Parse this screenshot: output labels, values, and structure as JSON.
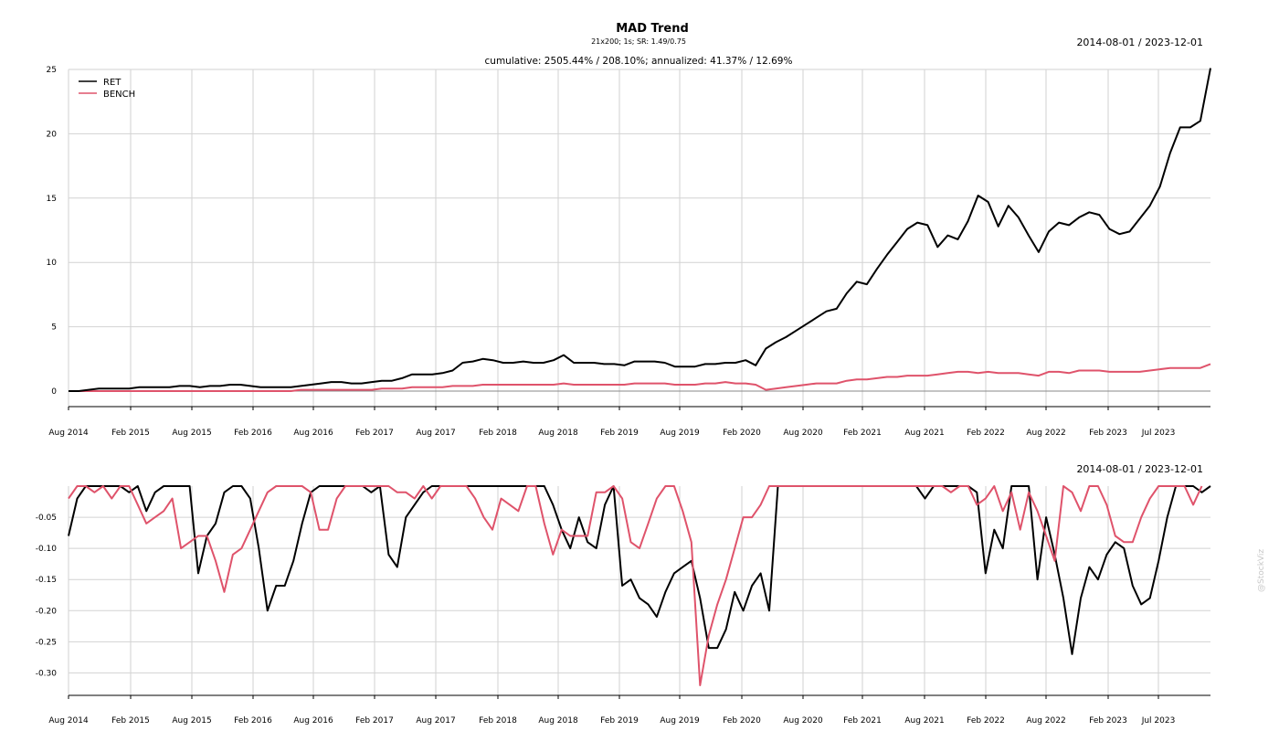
{
  "title": "MAD Trend",
  "subtitle": "21x200; 1s; SR: 1.49/0.75",
  "stats": "cumulative: 2505.44% / 208.10%; annualized: 41.37% / 12.69%",
  "date_range_top": "2014-08-01 / 2023-12-01",
  "date_range_bottom": "2014-08-01 / 2023-12-01",
  "watermark": "@StockViz",
  "colors": {
    "ret": "#000000",
    "bench": "#df536b",
    "grid": "#d2d2d2"
  },
  "x_tick_labels": [
    "Aug 2014",
    "Feb 2015",
    "Aug 2015",
    "Feb 2016",
    "Aug 2016",
    "Feb 2017",
    "Aug 2017",
    "Feb 2018",
    "Aug 2018",
    "Feb 2019",
    "Aug 2019",
    "Feb 2020",
    "Aug 2020",
    "Feb 2021",
    "Aug 2021",
    "Feb 2022",
    "Aug 2022",
    "Feb 2023",
    "Jul 2023"
  ],
  "chart_data": [
    {
      "type": "line",
      "title": "MAD Trend",
      "x_start": "2014-08",
      "x_end": "2023-12",
      "x_frequency": "monthly",
      "ylim": [
        0,
        25
      ],
      "y_ticks": [
        "0",
        "5",
        "10",
        "15",
        "20",
        "25"
      ],
      "legend": "top-left",
      "grid": true,
      "series": [
        {
          "name": "RET",
          "color": "#000000",
          "values": [
            0,
            0,
            0.1,
            0.2,
            0.2,
            0.2,
            0.2,
            0.3,
            0.3,
            0.3,
            0.3,
            0.4,
            0.4,
            0.3,
            0.4,
            0.4,
            0.5,
            0.5,
            0.4,
            0.3,
            0.3,
            0.3,
            0.3,
            0.4,
            0.5,
            0.6,
            0.7,
            0.7,
            0.6,
            0.6,
            0.7,
            0.8,
            0.8,
            1.0,
            1.3,
            1.3,
            1.3,
            1.4,
            1.6,
            2.2,
            2.3,
            2.5,
            2.4,
            2.2,
            2.2,
            2.3,
            2.2,
            2.2,
            2.4,
            2.8,
            2.2,
            2.2,
            2.2,
            2.1,
            2.1,
            2.0,
            2.3,
            2.3,
            2.3,
            2.2,
            1.9,
            1.9,
            1.9,
            2.1,
            2.1,
            2.2,
            2.2,
            2.4,
            2.0,
            3.3,
            3.8,
            4.2,
            4.7,
            5.2,
            5.7,
            6.2,
            6.4,
            7.6,
            8.5,
            8.3,
            9.5,
            10.6,
            11.6,
            12.6,
            13.1,
            12.9,
            11.2,
            12.1,
            11.8,
            13.2,
            15.2,
            14.7,
            12.8,
            14.4,
            13.5,
            12.1,
            10.8,
            12.4,
            13.1,
            12.9,
            13.5,
            13.9,
            13.7,
            12.6,
            12.2,
            12.4,
            13.4,
            14.4,
            15.9,
            18.5,
            20.5,
            20.5,
            21.0,
            25.1
          ]
        },
        {
          "name": "BENCH",
          "color": "#df536b",
          "values": [
            0,
            0,
            0,
            0,
            0,
            0,
            0,
            0,
            0,
            0,
            0,
            0,
            0,
            0,
            0,
            0,
            0,
            0,
            0,
            0,
            0,
            0,
            0,
            0.1,
            0.1,
            0.1,
            0.1,
            0.1,
            0.1,
            0.1,
            0.1,
            0.2,
            0.2,
            0.2,
            0.3,
            0.3,
            0.3,
            0.3,
            0.4,
            0.4,
            0.4,
            0.5,
            0.5,
            0.5,
            0.5,
            0.5,
            0.5,
            0.5,
            0.5,
            0.6,
            0.5,
            0.5,
            0.5,
            0.5,
            0.5,
            0.5,
            0.6,
            0.6,
            0.6,
            0.6,
            0.5,
            0.5,
            0.5,
            0.6,
            0.6,
            0.7,
            0.6,
            0.6,
            0.5,
            0.1,
            0.2,
            0.3,
            0.4,
            0.5,
            0.6,
            0.6,
            0.6,
            0.8,
            0.9,
            0.9,
            1.0,
            1.1,
            1.1,
            1.2,
            1.2,
            1.2,
            1.3,
            1.4,
            1.5,
            1.5,
            1.4,
            1.5,
            1.4,
            1.4,
            1.4,
            1.3,
            1.2,
            1.5,
            1.5,
            1.4,
            1.6,
            1.6,
            1.6,
            1.5,
            1.5,
            1.5,
            1.5,
            1.6,
            1.7,
            1.8,
            1.8,
            1.8,
            1.8,
            2.1
          ]
        }
      ]
    },
    {
      "type": "line",
      "title": "",
      "x_start": "2014-08",
      "x_end": "2023-12",
      "x_frequency": "monthly",
      "ylim": [
        -0.32,
        0
      ],
      "y_ticks": [
        "-0.05",
        "-0.10",
        "-0.15",
        "-0.20",
        "-0.25",
        "-0.30"
      ],
      "grid": true,
      "series": [
        {
          "name": "RET",
          "color": "#000000",
          "values": [
            -0.08,
            -0.02,
            0,
            0,
            0,
            0,
            0,
            -0.01,
            0,
            -0.04,
            -0.01,
            0,
            0,
            0,
            0,
            -0.14,
            -0.08,
            -0.06,
            -0.01,
            0,
            0,
            -0.02,
            -0.1,
            -0.2,
            -0.16,
            -0.16,
            -0.12,
            -0.06,
            -0.01,
            0,
            0,
            0,
            0,
            0,
            0,
            -0.01,
            0,
            -0.11,
            -0.13,
            -0.05,
            -0.03,
            -0.01,
            0,
            0,
            0,
            0,
            0,
            0,
            0,
            0,
            0,
            0,
            0,
            0,
            0,
            0,
            -0.03,
            -0.07,
            -0.1,
            -0.05,
            -0.09,
            -0.1,
            -0.03,
            0,
            -0.16,
            -0.15,
            -0.18,
            -0.19,
            -0.21,
            -0.17,
            -0.14,
            -0.13,
            -0.12,
            -0.18,
            -0.26,
            -0.26,
            -0.23,
            -0.17,
            -0.2,
            -0.16,
            -0.14,
            -0.2,
            0,
            0,
            0,
            0,
            0,
            0,
            0,
            0,
            0,
            0,
            0,
            0,
            0,
            0,
            0,
            0,
            0,
            -0.02,
            0,
            0,
            0,
            0,
            0,
            -0.01,
            -0.14,
            -0.07,
            -0.1,
            0,
            0,
            0,
            -0.15,
            -0.05,
            -0.11,
            -0.18,
            -0.27,
            -0.18,
            -0.13,
            -0.15,
            -0.11,
            -0.09,
            -0.1,
            -0.16,
            -0.19,
            -0.18,
            -0.12,
            -0.05,
            0,
            0,
            0,
            -0.01,
            0
          ]
        },
        {
          "name": "BENCH",
          "color": "#df536b",
          "values": [
            -0.02,
            0,
            0,
            -0.01,
            0,
            -0.02,
            0,
            0,
            -0.03,
            -0.06,
            -0.05,
            -0.04,
            -0.02,
            -0.1,
            -0.09,
            -0.08,
            -0.08,
            -0.12,
            -0.17,
            -0.11,
            -0.1,
            -0.07,
            -0.04,
            -0.01,
            0,
            0,
            0,
            0,
            -0.01,
            -0.07,
            -0.07,
            -0.02,
            0,
            0,
            0,
            0,
            0,
            0,
            -0.01,
            -0.01,
            -0.02,
            0,
            -0.02,
            0,
            0,
            0,
            0,
            -0.02,
            -0.05,
            -0.07,
            -0.02,
            -0.03,
            -0.04,
            0,
            0,
            -0.06,
            -0.11,
            -0.07,
            -0.08,
            -0.08,
            -0.08,
            -0.01,
            -0.01,
            0,
            -0.02,
            -0.09,
            -0.1,
            -0.06,
            -0.02,
            0,
            0,
            -0.04,
            -0.09,
            -0.32,
            -0.24,
            -0.19,
            -0.15,
            -0.1,
            -0.05,
            -0.05,
            -0.03,
            0,
            0,
            0,
            0,
            0,
            0,
            0,
            0,
            0,
            0,
            0,
            0,
            0,
            0,
            0,
            0,
            0,
            0,
            0,
            0,
            0,
            -0.01,
            0,
            0,
            -0.03,
            -0.02,
            0,
            -0.04,
            -0.01,
            -0.07,
            -0.01,
            -0.04,
            -0.08,
            -0.12,
            0,
            -0.01,
            -0.04,
            0,
            0,
            -0.03,
            -0.08,
            -0.09,
            -0.09,
            -0.05,
            -0.02,
            0,
            0,
            0,
            0,
            -0.03,
            0
          ]
        }
      ]
    }
  ]
}
